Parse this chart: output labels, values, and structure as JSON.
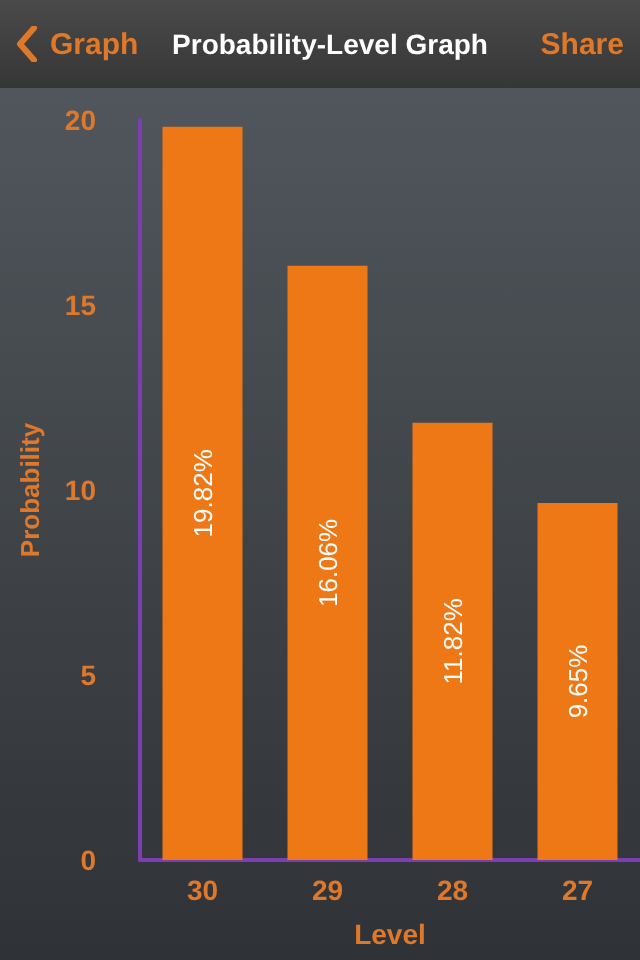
{
  "chart_data": {
    "type": "bar",
    "title": "Probability-Level Graph",
    "annotations": [
      "Graph",
      "Share"
    ],
    "xlabel": "Level",
    "ylabel": "Probability",
    "categories": [
      "30",
      "29",
      "28",
      "27"
    ],
    "values": [
      19.82,
      16.06,
      11.82,
      9.65
    ],
    "value_labels": [
      "19.82%",
      "16.06%",
      "11.82%",
      "9.65%"
    ],
    "color": "#ee7816",
    "ylim": [
      0,
      20
    ],
    "yticks": [
      0,
      5,
      10,
      15,
      20
    ],
    "grid": false
  }
}
